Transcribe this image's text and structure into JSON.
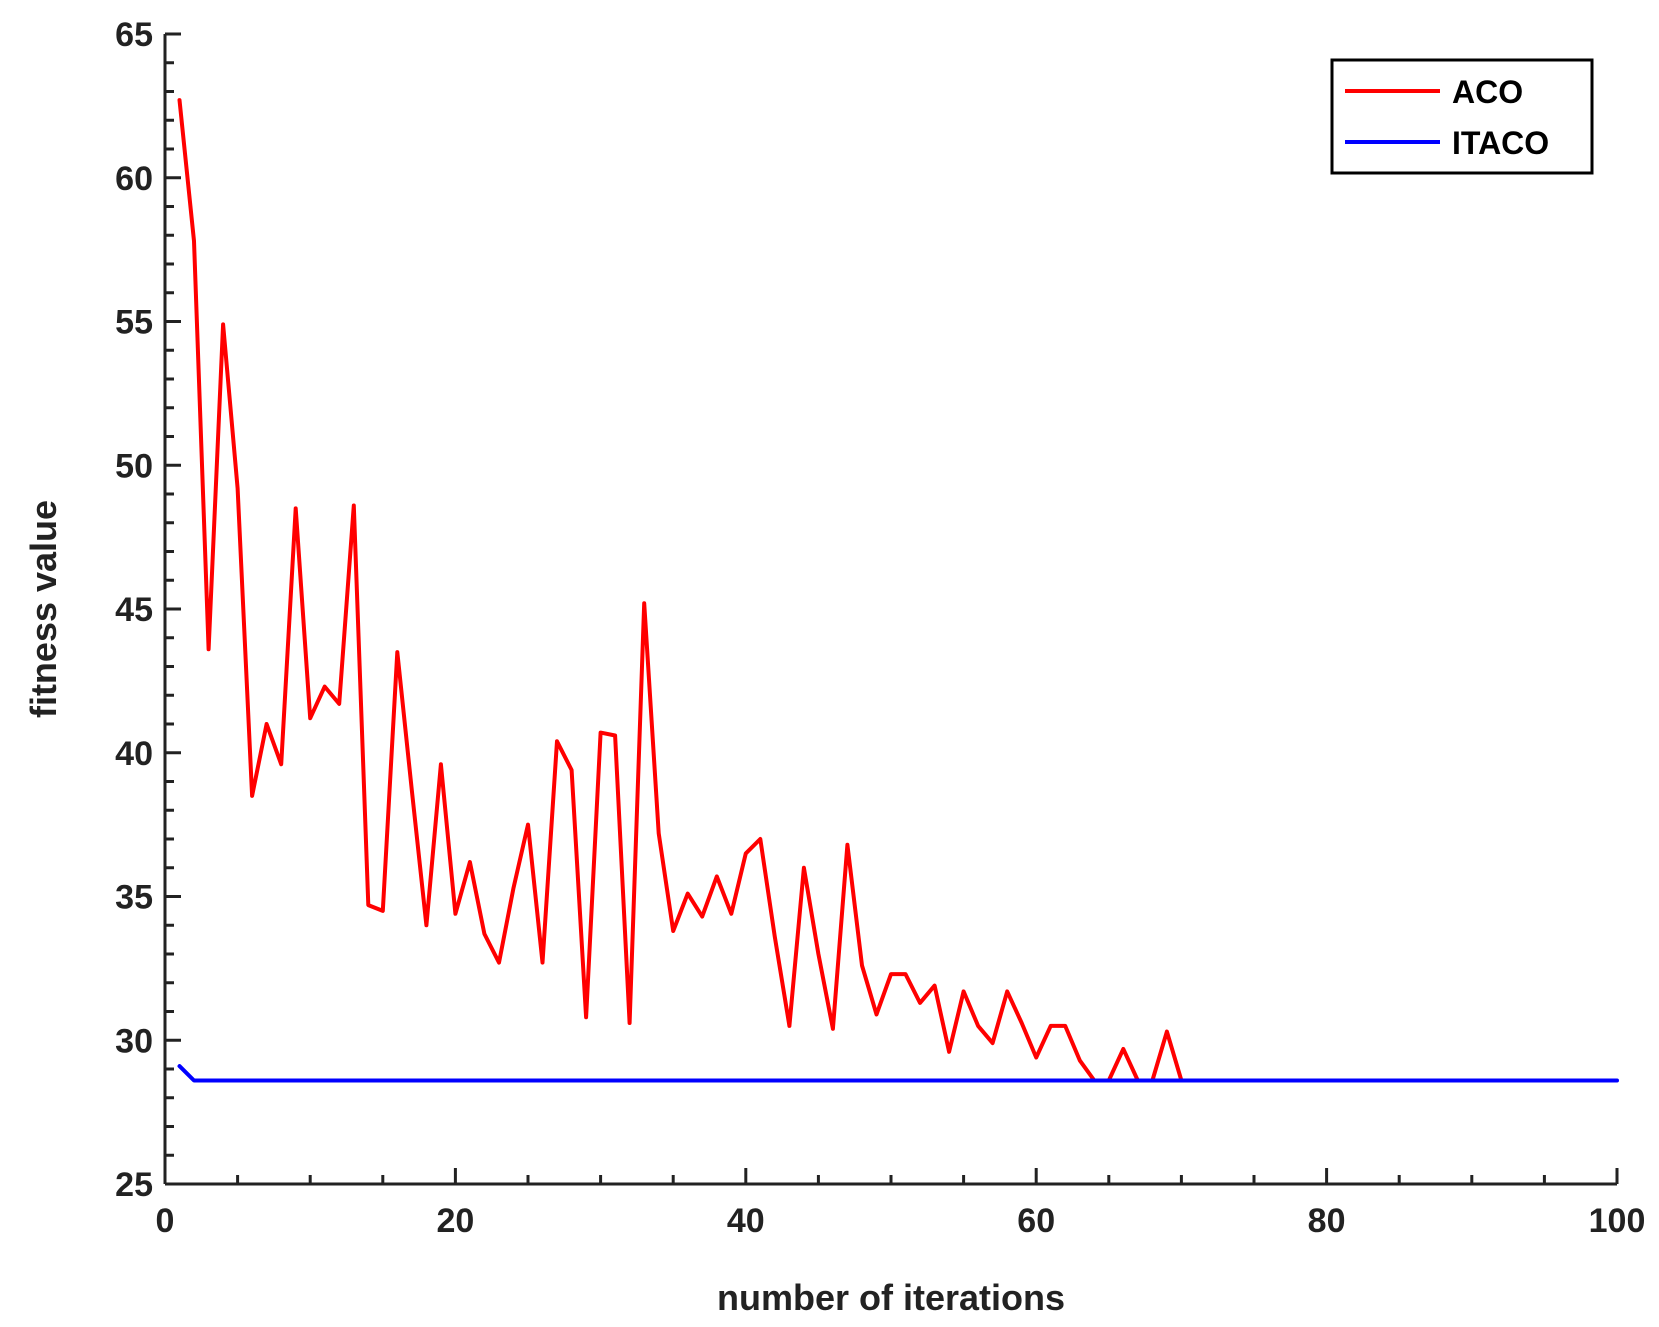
{
  "chart_data": {
    "type": "line",
    "title": "",
    "xlabel": "number of iterations",
    "ylabel": "fitness value",
    "xlim": [
      0,
      100
    ],
    "ylim": [
      25,
      65
    ],
    "x_ticks": [
      "0",
      "20",
      "40",
      "60",
      "80",
      "100"
    ],
    "y_ticks": [
      "25",
      "30",
      "35",
      "40",
      "45",
      "50",
      "55",
      "60",
      "65"
    ],
    "grid": false,
    "legend_position": "top-right",
    "series": [
      {
        "name": "ACO",
        "color": "#ff0000",
        "x": [
          1,
          2,
          3,
          4,
          5,
          6,
          7,
          8,
          9,
          10,
          11,
          12,
          13,
          14,
          15,
          16,
          17,
          18,
          19,
          20,
          21,
          22,
          23,
          24,
          25,
          26,
          27,
          28,
          29,
          30,
          31,
          32,
          33,
          34,
          35,
          36,
          37,
          38,
          39,
          40,
          41,
          42,
          43,
          44,
          45,
          46,
          47,
          48,
          49,
          50,
          51,
          52,
          53,
          54,
          55,
          56,
          57,
          58,
          59,
          60,
          61,
          62,
          63,
          64,
          65,
          66,
          67,
          68,
          69,
          70
        ],
        "y": [
          62.7,
          57.8,
          43.6,
          54.9,
          49.2,
          38.5,
          41.0,
          39.6,
          48.5,
          41.2,
          42.3,
          41.7,
          48.6,
          34.7,
          34.5,
          43.5,
          38.7,
          34.0,
          39.6,
          34.4,
          36.2,
          33.7,
          32.7,
          35.3,
          37.5,
          32.7,
          40.4,
          39.4,
          30.8,
          40.7,
          40.6,
          30.6,
          45.2,
          37.2,
          33.8,
          35.1,
          34.3,
          35.7,
          34.4,
          36.5,
          37.0,
          33.6,
          30.5,
          36.0,
          33.0,
          30.4,
          36.8,
          32.6,
          30.9,
          32.3,
          32.3,
          31.3,
          31.9,
          29.6,
          31.7,
          30.5,
          29.9,
          31.7,
          30.6,
          29.4,
          30.5,
          30.5,
          29.3,
          28.6,
          28.6,
          29.7,
          28.6,
          28.6,
          30.3,
          28.6
        ]
      },
      {
        "name": "ITACO",
        "color": "#0000ff",
        "x": [
          1,
          2,
          100
        ],
        "y": [
          29.1,
          28.6,
          28.6
        ]
      }
    ]
  }
}
